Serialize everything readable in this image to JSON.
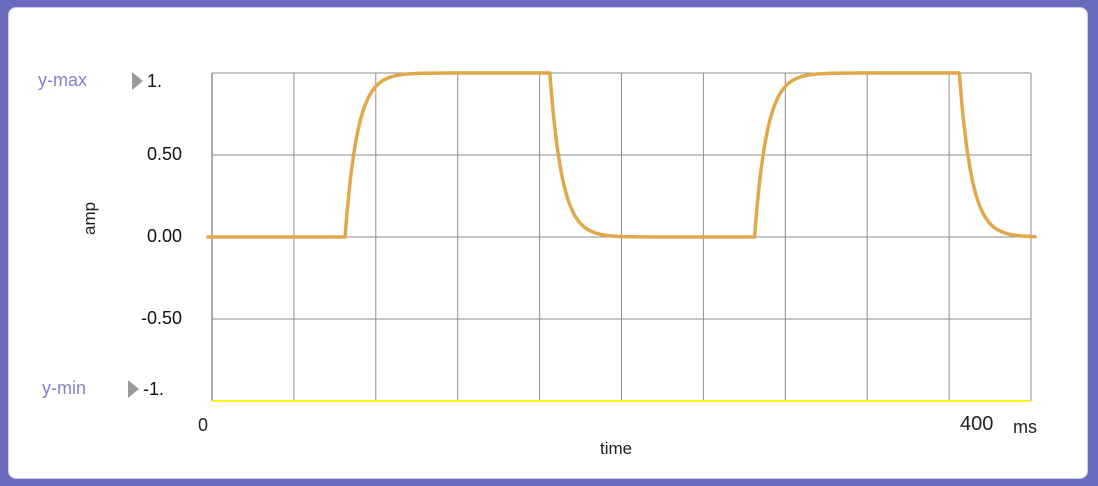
{
  "controls": {
    "ymax_label": "y-max",
    "ymax_value": "1.",
    "ymin_label": "y-min",
    "ymin_value": "-1."
  },
  "chart_data": {
    "type": "line",
    "xlabel": "time",
    "ylabel": "amp",
    "xunit": "ms",
    "xlim": [
      0,
      400
    ],
    "ylim": [
      -1,
      1
    ],
    "x_tick_labels": [
      "0",
      "400"
    ],
    "y_tick_labels": [
      "0.50",
      "0.00",
      "-0.50"
    ],
    "y_ticks": [
      0.5,
      0,
      -0.5
    ],
    "grid": true,
    "colors": {
      "series": "#e0a84a",
      "grid": "#8e8e8e",
      "baseline": "#f2f21a"
    },
    "series": [
      {
        "pulses": [
          {
            "rise": 65,
            "fall": 165
          },
          {
            "rise": 265,
            "fall": 365
          }
        ],
        "time_constant": 6
      }
    ]
  }
}
